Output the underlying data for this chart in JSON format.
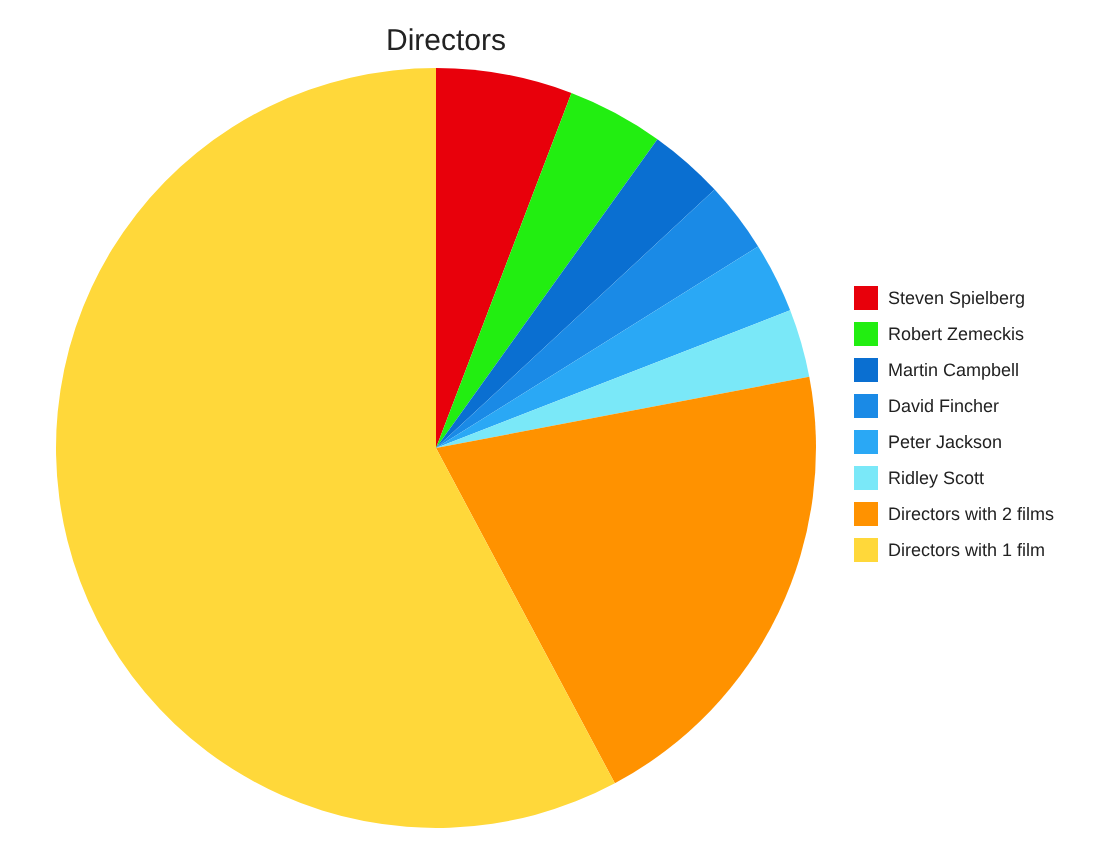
{
  "chart_data": {
    "type": "pie",
    "title": "Directors",
    "categories": [
      "Steven Spielberg",
      "Robert Zemeckis",
      "Martin Campbell",
      "David Fincher",
      "Peter Jackson",
      "Ridley Scott",
      "Directors with 2 films",
      "Directors with 1 film"
    ],
    "values": [
      5.8,
      4.1,
      3.2,
      3,
      3,
      2.9,
      20.2,
      57.8
    ],
    "colors": [
      "#e8000b",
      "#22ee11",
      "#0a6fd1",
      "#1a8ae6",
      "#2aa8f5",
      "#7ae8f8",
      "#ff9200",
      "#ffd83a"
    ],
    "legend": "right"
  }
}
